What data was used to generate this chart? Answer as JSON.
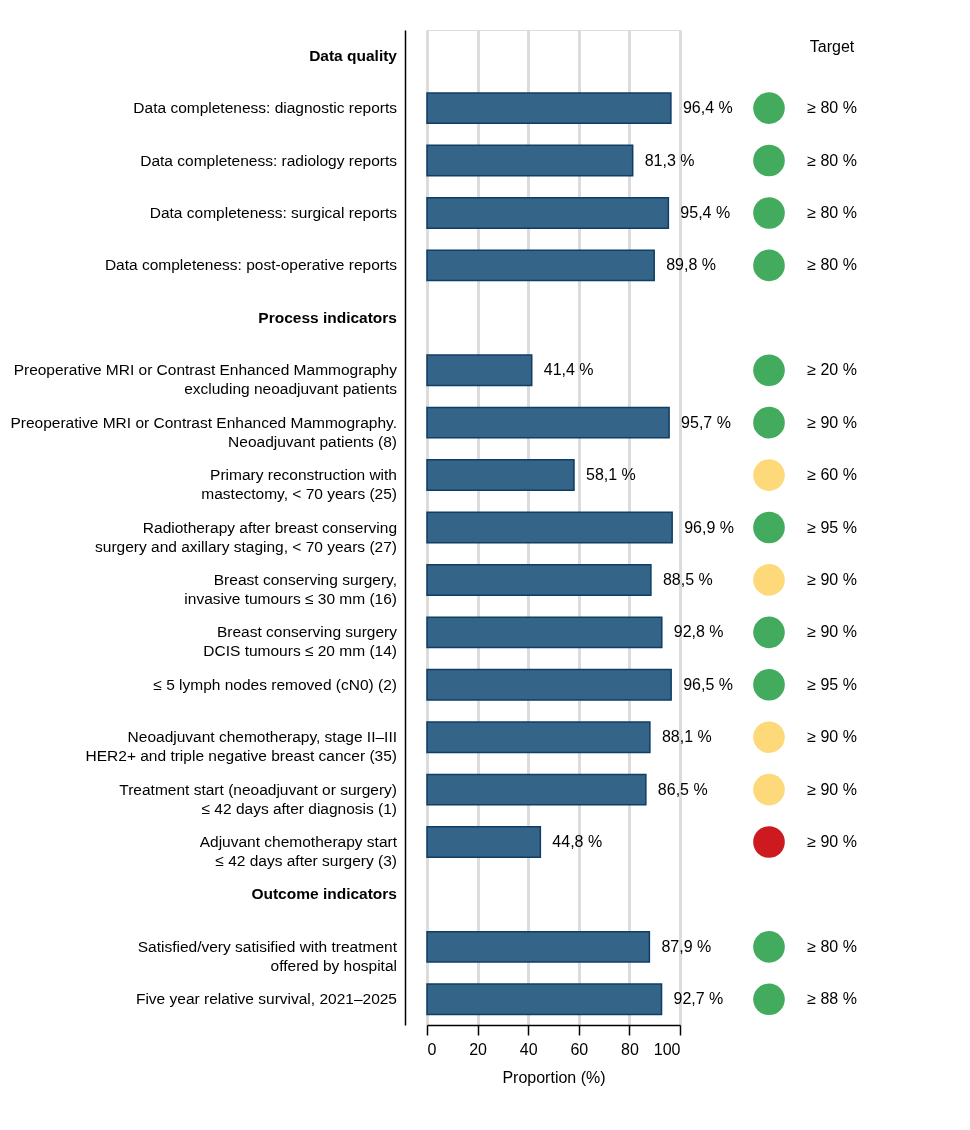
{
  "chart_data": {
    "type": "bar",
    "orientation": "horizontal",
    "xlabel": "Proportion (%)",
    "xlim": [
      0,
      100
    ],
    "xticks": [
      0,
      20,
      40,
      60,
      80,
      100
    ],
    "grid": "x",
    "legend": false,
    "categories": [
      "Data quality",
      "Data completeness: diagnostic reports",
      "Data completeness: radiology reports",
      "Data completeness: surgical reports",
      "Data completeness: post-operative reports",
      "Process indicators",
      "Preoperative MRI or Contrast Enhanced Mammography\nexcluding neoadjuvant patients",
      "Preoperative MRI or Contrast Enhanced Mammography.\nNeoadjuvant patients (8)",
      "Primary reconstruction with\nmastectomy, < 70 years (25)",
      "Radiotherapy after breast conserving\nsurgery and axillary staging, < 70 years (27)",
      "Breast conserving surgery,\ninvasive tumours ≤ 30 mm (16)",
      "Breast conserving surgery\nDCIS tumours ≤ 20 mm (14)",
      "≤ 5 lymph nodes removed (cN0) (2)",
      "Neoadjuvant chemotherapy, stage II–III\nHER2+ and triple negative breast cancer (35)",
      "Treatment start (neoadjuvant or surgery)\n≤ 42 days after diagnosis (1)",
      "Adjuvant chemotherapy start\n≤ 42 days after surgery (3)",
      "Outcome indicators",
      "Satisfied/very satisified with treatment\noffered by hospital",
      "Five year relative survival, 2021–2025"
    ],
    "series": [
      {
        "color": "#346588",
        "values": [
          null,
          96.4,
          81.3,
          95.4,
          89.8,
          null,
          41.4,
          95.7,
          58.1,
          96.9,
          88.5,
          92.8,
          96.5,
          88.1,
          86.5,
          44.8,
          null,
          87.9,
          92.7
        ],
        "value_labels": [
          null,
          "96,4 %",
          "81,3 %",
          "95,4 %",
          "89,8 %",
          null,
          "41,4 %",
          "95,7 %",
          "58,1 %",
          "96,9 %",
          "88,5 %",
          "92,8 %",
          "96,5 %",
          "88,1 %",
          "86,5 %",
          "44,8 %",
          null,
          "87,9 %",
          "92,7 %"
        ]
      }
    ],
    "annotations": [
      "Target",
      "≥ 80 %",
      "≥ 80 %",
      "≥ 80 %",
      "≥ 80 %",
      "≥ 20 %",
      "≥ 90 %",
      "≥ 60 %",
      "≥ 95 %",
      "≥ 90 %",
      "≥ 90 %",
      "≥ 95 %",
      "≥ 90 %",
      "≥ 90 %",
      "≥ 90 %",
      "≥ 80 %",
      "≥ 88 %"
    ]
  }
}
